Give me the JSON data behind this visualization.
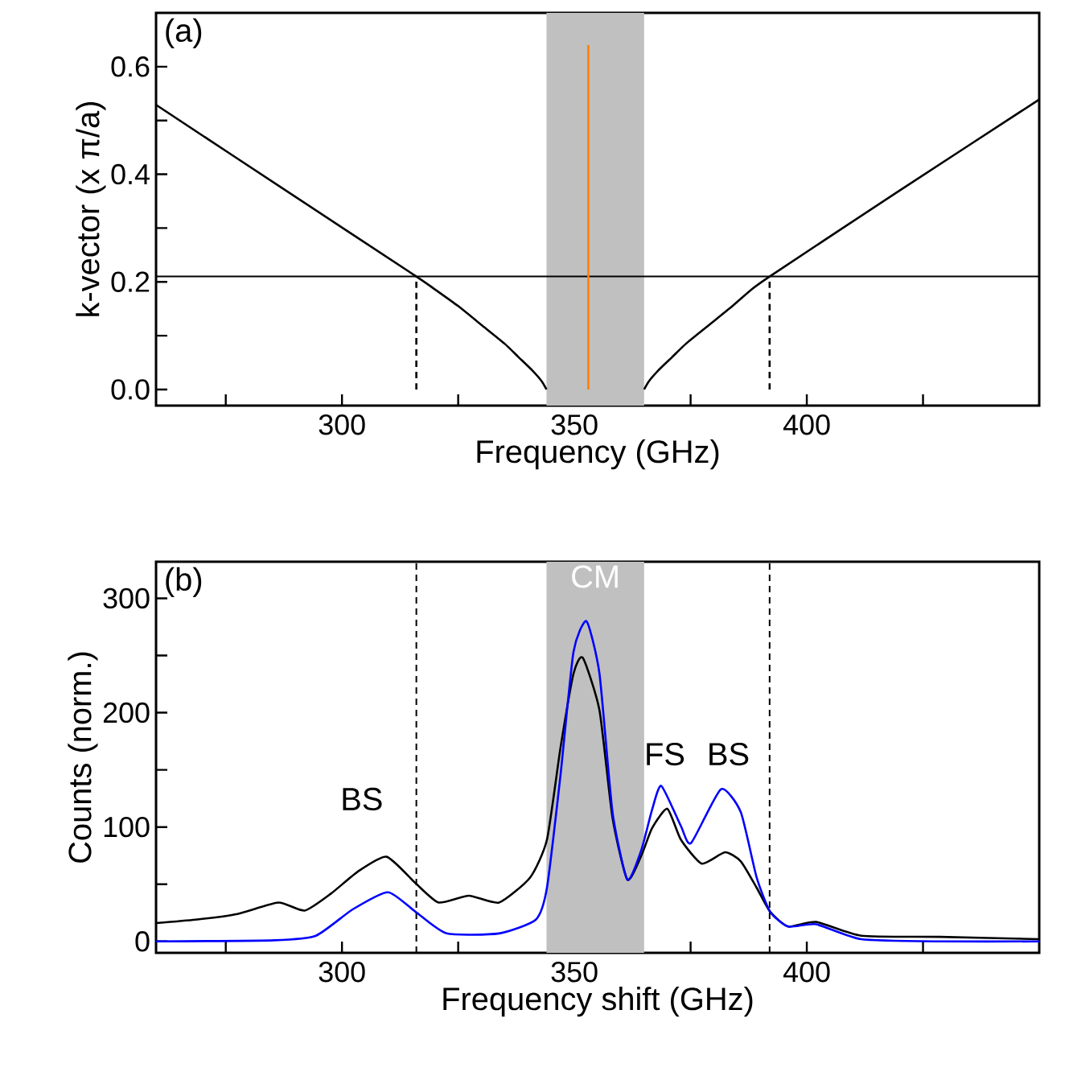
{
  "chart_data": [
    {
      "type": "line",
      "xlabel": "Frequency (GHz)",
      "ylabel": "k-vector (x π/a)",
      "xlim": [
        260,
        450
      ],
      "xticks": [
        {
          "value": 275,
          "label": null
        },
        300,
        {
          "value": 325,
          "label": null
        },
        350,
        {
          "value": 375,
          "label": null
        },
        400,
        {
          "value": 425,
          "label": null
        }
      ],
      "ylim": [
        -0.03,
        0.7
      ],
      "yticks": [
        {
          "value": 0,
          "label": "0.0"
        },
        {
          "value": 0.1,
          "label": null
        },
        0.2,
        {
          "value": 0.3,
          "label": null
        },
        0.4,
        {
          "value": 0.5,
          "label": null
        },
        0.6
      ],
      "annotations": [
        "(a)"
      ],
      "bands": [
        {
          "axis": "x",
          "from": 344,
          "to": 365,
          "color": "#c0c0c0"
        }
      ],
      "ref_lines": [
        {
          "axis": "y",
          "value": 0.21,
          "color": "#000000",
          "line_style": "solid"
        }
      ],
      "series": [
        {
          "color": "#000000",
          "x": [
            260,
            290,
            316,
            320,
            325,
            330,
            335,
            338,
            341,
            343,
            344
          ],
          "values": [
            0.529,
            0.358,
            0.21,
            0.186,
            0.155,
            0.12,
            0.085,
            0.06,
            0.035,
            0.015,
            0
          ]
        },
        {
          "color": "#000000",
          "x": [
            365,
            366,
            368,
            371,
            374,
            379,
            384,
            388,
            392,
            420,
            450
          ],
          "values": [
            0,
            0.015,
            0.035,
            0.06,
            0.085,
            0.12,
            0.155,
            0.185,
            0.21,
            0.37,
            0.539
          ]
        },
        {
          "color": "#000000",
          "line_style": "dashed",
          "x": [
            316,
            316
          ],
          "values": [
            0,
            0.21
          ]
        },
        {
          "color": "#000000",
          "line_style": "dashed",
          "x": [
            392,
            392
          ],
          "values": [
            0,
            0.21
          ]
        },
        {
          "color": "#ff7f00",
          "x": [
            353,
            353
          ],
          "values": [
            0,
            0.64
          ]
        }
      ]
    },
    {
      "type": "line",
      "xlabel": "Frequency shift (GHz)",
      "ylabel": "Counts (norm.)",
      "xlim": [
        260,
        450
      ],
      "xticks": [
        {
          "value": 275,
          "label": null
        },
        300,
        {
          "value": 325,
          "label": null
        },
        350,
        {
          "value": 375,
          "label": null
        },
        400,
        {
          "value": 425,
          "label": null
        }
      ],
      "ylim": [
        -10,
        332
      ],
      "yticks": [
        0,
        {
          "value": 50,
          "label": null
        },
        100,
        {
          "value": 150,
          "label": null
        },
        200,
        {
          "value": 250,
          "label": null
        },
        300
      ],
      "annotations": [
        "(b)",
        "BS",
        "FS",
        "BS"
      ],
      "bands": [
        {
          "axis": "x",
          "from": 344,
          "to": 365,
          "color": "#c0c0c0",
          "label": "CM"
        }
      ],
      "ref_lines": [
        {
          "axis": "x",
          "value": 316,
          "color": "#000000",
          "line_style": "dashed"
        },
        {
          "axis": "x",
          "value": 392,
          "color": "#000000",
          "line_style": "dashed"
        }
      ],
      "series": [
        {
          "color": "#000000",
          "x": [
            260,
            268.5,
            277.5,
            286.3,
            292,
            297.7,
            303.4,
            309.6,
            315.8,
            320.8,
            327.3,
            333.8,
            340.5,
            344.1,
            347,
            349.8,
            351.8,
            355.4,
            358.2,
            361.4,
            364.4,
            366.7,
            370,
            372.9,
            377.4,
            382.4,
            385.8,
            389.2,
            392.1,
            396,
            402,
            411.7,
            428.6,
            450
          ],
          "values": [
            16,
            19,
            24,
            34,
            27,
            42,
            61,
            74,
            51,
            34,
            40,
            34,
            56,
            89,
            169,
            234,
            248,
            202,
            108,
            54,
            75,
            99,
            116,
            89,
            68,
            78,
            70,
            47,
            26,
            13,
            17,
            5,
            4,
            2
          ]
        },
        {
          "color": "#0000ff",
          "x": [
            260,
            285.4,
            294.4,
            302.3,
            309.9,
            315.8,
            322.5,
            333.8,
            341.7,
            344.1,
            347,
            349.8,
            352.6,
            355.4,
            358.2,
            361.4,
            364.4,
            366.7,
            368.7,
            372.9,
            375.1,
            381.5,
            385.8,
            389.2,
            392.1,
            396,
            402,
            411.7,
            428.6,
            450
          ],
          "values": [
            0,
            1,
            5,
            28,
            43,
            26,
            7,
            7,
            19,
            47,
            145,
            253,
            280,
            234,
            113,
            54,
            80,
            115,
            136,
            101,
            86,
            133,
            113,
            56,
            26,
            13,
            15,
            2,
            0,
            0
          ]
        }
      ]
    }
  ]
}
